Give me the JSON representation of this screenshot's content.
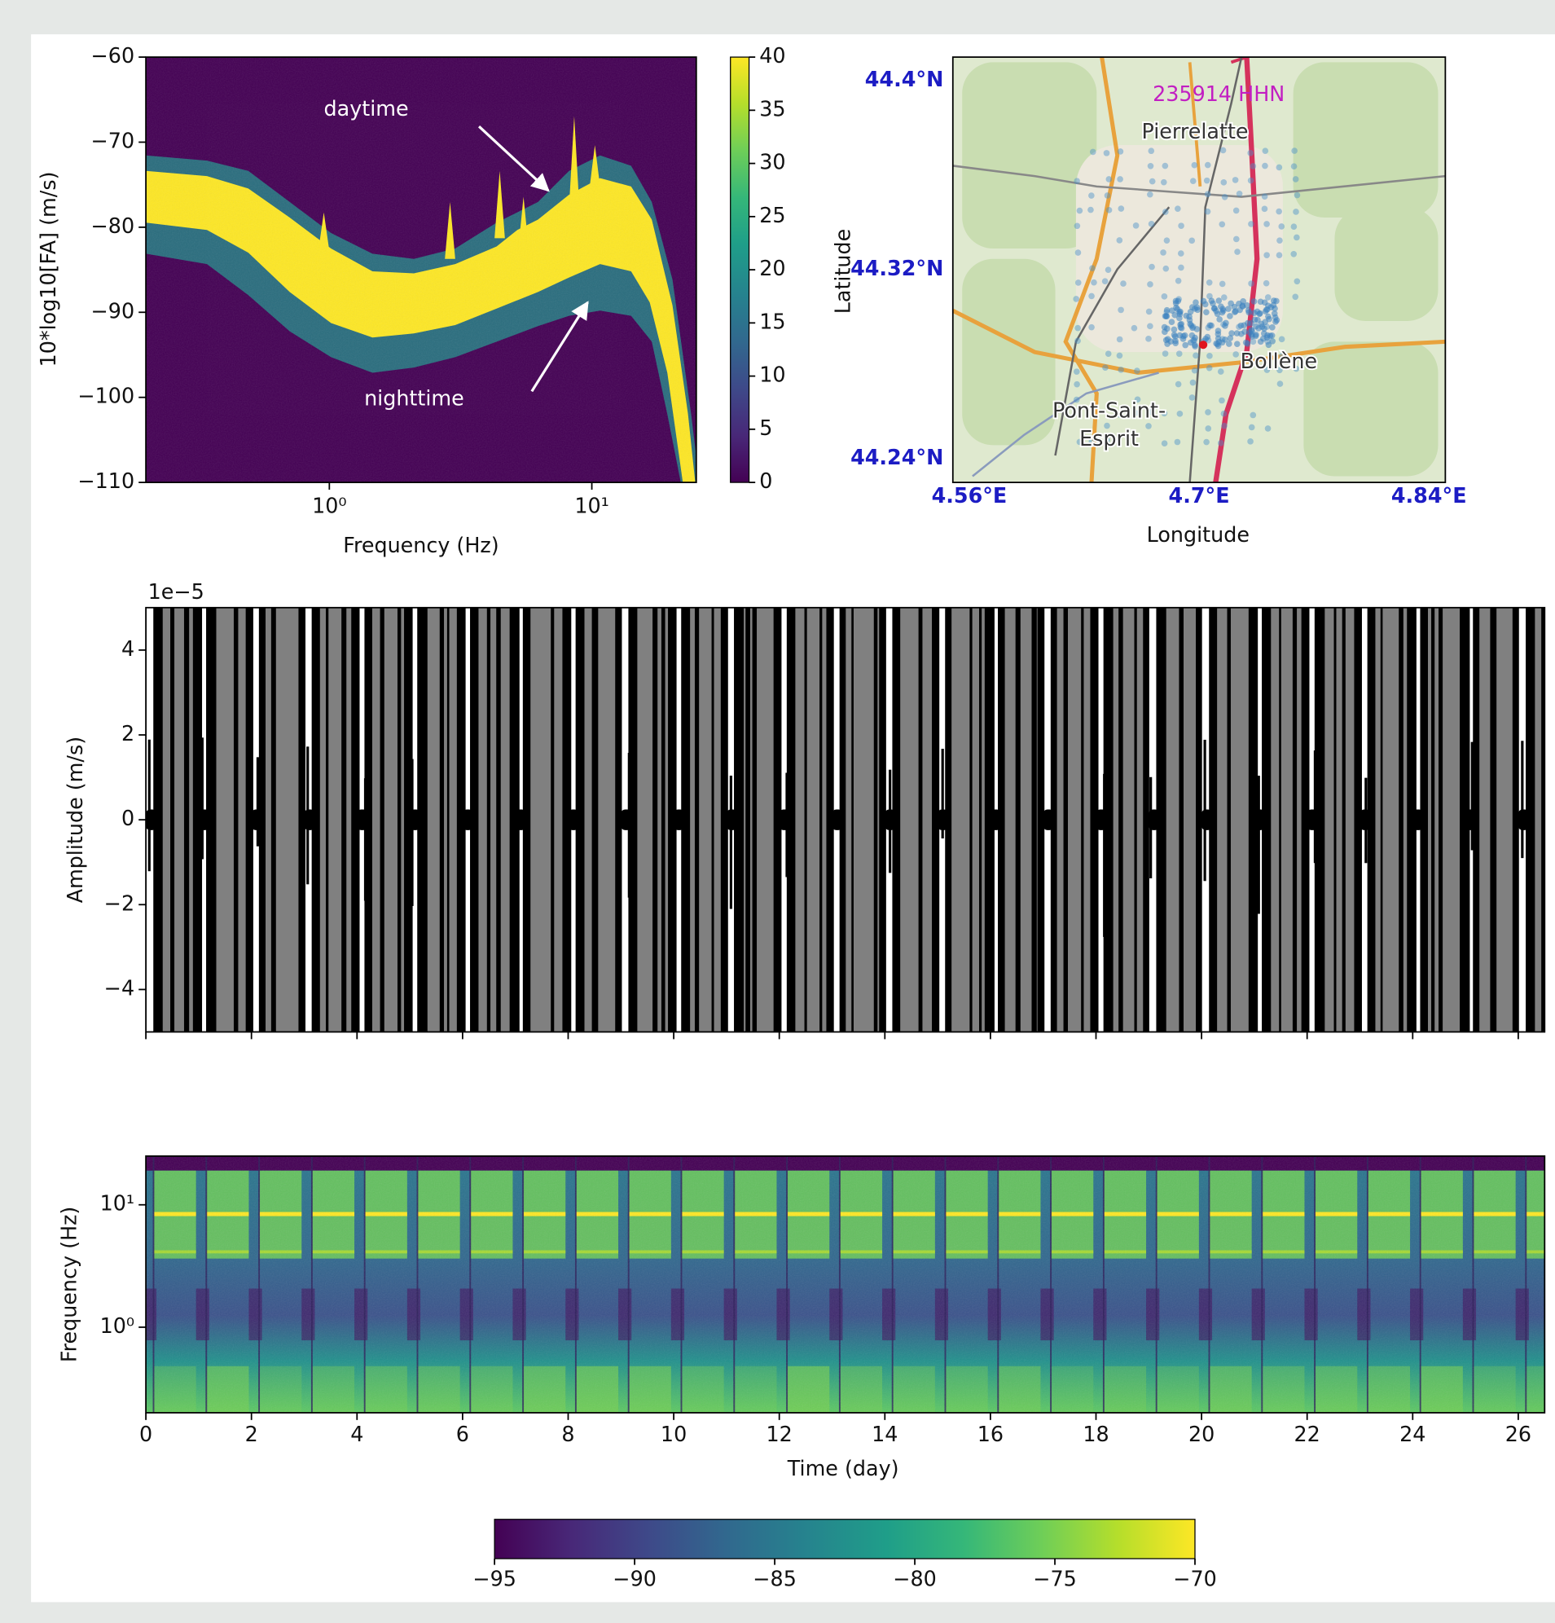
{
  "chart_data": [
    {
      "type": "heatmap",
      "xlabel": "Frequency (Hz)",
      "ylabel": "10*log10[FA] (m/s)",
      "xscale": "log",
      "xlim": [
        0.2,
        25
      ],
      "xticks": [
        {
          "value": 1,
          "label": "10⁰"
        },
        {
          "value": 10,
          "label": "10¹"
        }
      ],
      "ylim": [
        -110,
        -60
      ],
      "yticks": [
        {
          "value": -110,
          "label": "−110"
        },
        {
          "value": -100,
          "label": "−100"
        },
        {
          "value": -90,
          "label": "−90"
        },
        {
          "value": -80,
          "label": "−80"
        },
        {
          "value": -70,
          "label": "−70"
        },
        {
          "value": -60,
          "label": "−60"
        }
      ],
      "colorbar": {
        "lim": [
          0,
          40
        ],
        "ticks": [
          0,
          5,
          10,
          15,
          20,
          25,
          30,
          35,
          40
        ]
      },
      "annotations": [
        "daytime",
        "nighttime"
      ]
    },
    {
      "type": "map",
      "title": "235914 HHN",
      "xlabel": "Longitude",
      "ylabel": "Latitude",
      "xlim": [
        4.55,
        4.85
      ],
      "xticks": [
        {
          "value": 4.56,
          "label": "4.56°E"
        },
        {
          "value": 4.7,
          "label": "4.7°E"
        },
        {
          "value": 4.84,
          "label": "4.84°E"
        }
      ],
      "ylim": [
        44.23,
        44.41
      ],
      "yticks": [
        {
          "value": 44.4,
          "label": "44.4°N"
        },
        {
          "value": 44.32,
          "label": "44.32°N"
        },
        {
          "value": 44.24,
          "label": "44.24°N"
        }
      ],
      "places": [
        "Pierrelatte",
        "Bollène",
        "Pont-Saint-",
        "Esprit"
      ]
    },
    {
      "type": "waveform",
      "ylabel": "Amplitude (m/s)",
      "offset_label": "1e−5",
      "ylim": [
        -5,
        5
      ],
      "yticks": [
        {
          "value": -4,
          "label": "−4"
        },
        {
          "value": -2,
          "label": "−2"
        },
        0,
        2,
        4
      ],
      "xlim": [
        0,
        26.5
      ],
      "xticks": [
        0,
        2,
        4,
        6,
        8,
        10,
        12,
        14,
        16,
        18,
        20,
        22,
        24,
        26
      ]
    },
    {
      "type": "spectrogram",
      "xlabel": "Time (day)",
      "ylabel": "Frequency (Hz)",
      "yscale": "log",
      "xlim": [
        0,
        26.5
      ],
      "xticks": [
        0,
        2,
        4,
        6,
        8,
        10,
        12,
        14,
        16,
        18,
        20,
        22,
        24,
        26
      ],
      "ylim": [
        0.2,
        25
      ],
      "yticks": [
        {
          "value": 1,
          "label": "10⁰"
        },
        {
          "value": 10,
          "label": "10¹"
        }
      ],
      "colorbar": {
        "lim": [
          -95,
          -70
        ],
        "ticks": [
          {
            "value": -95,
            "label": "−95"
          },
          {
            "value": -90,
            "label": "−90"
          },
          {
            "value": -85,
            "label": "−85"
          },
          {
            "value": -80,
            "label": "−80"
          },
          {
            "value": -75,
            "label": "−75"
          },
          {
            "value": -70,
            "label": "−70"
          }
        ]
      }
    }
  ]
}
